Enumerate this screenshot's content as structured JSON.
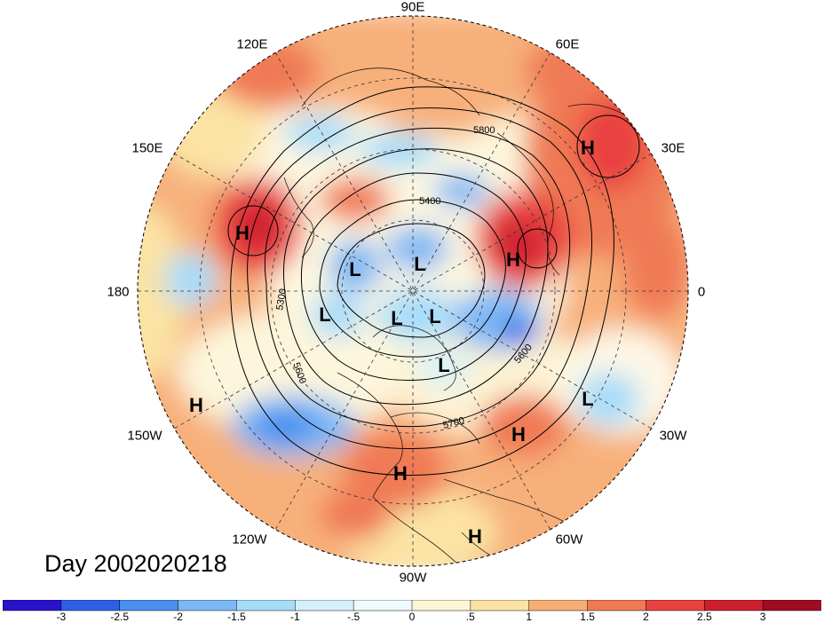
{
  "title": "Day 2002020218",
  "longitude_labels": [
    "90E",
    "60E",
    "30E",
    "0",
    "30W",
    "60W",
    "90W",
    "120W",
    "150W",
    "180",
    "150E",
    "120E"
  ],
  "contour_labels": [
    "5400",
    "5800",
    "5300",
    "5600",
    "5600",
    "5700"
  ],
  "pressure_centers": [
    {
      "type": "H",
      "name": "high-east-europe"
    },
    {
      "type": "H",
      "name": "high-north-pacific"
    },
    {
      "type": "H",
      "name": "high-north-atlantic"
    },
    {
      "type": "H",
      "name": "high-north-pacific-east"
    },
    {
      "type": "H",
      "name": "high-central-atlantic"
    },
    {
      "type": "H",
      "name": "high-gulf-of-mexico"
    },
    {
      "type": "H",
      "name": "high-south-america"
    },
    {
      "type": "L",
      "name": "low-polar-1"
    },
    {
      "type": "L",
      "name": "low-polar-2"
    },
    {
      "type": "L",
      "name": "low-polar-3"
    },
    {
      "type": "L",
      "name": "low-polar-4"
    },
    {
      "type": "L",
      "name": "low-polar-5"
    },
    {
      "type": "L",
      "name": "low-polar-6"
    },
    {
      "type": "L",
      "name": "low-atlantic-east"
    }
  ],
  "colorbar": {
    "tick_labels": [
      "-3",
      "-2.5",
      "-2",
      "-1.5",
      "-1",
      "-.5",
      "0",
      ".5",
      "1",
      "1.5",
      "2",
      "2.5",
      "3"
    ],
    "colors": [
      "#2a12c8",
      "#2e5fe8",
      "#4a8ef0",
      "#7cb8f6",
      "#a6dcfa",
      "#d4f1fb",
      "#eefafd",
      "#fdf7d6",
      "#fbe3a4",
      "#f7ae73",
      "#f07a54",
      "#e94140",
      "#cc1f2e",
      "#9e0c22"
    ]
  },
  "colors": {
    "outside": "#ffffff",
    "contour": "#000000",
    "coast": "#000000",
    "grid": "#333333"
  }
}
